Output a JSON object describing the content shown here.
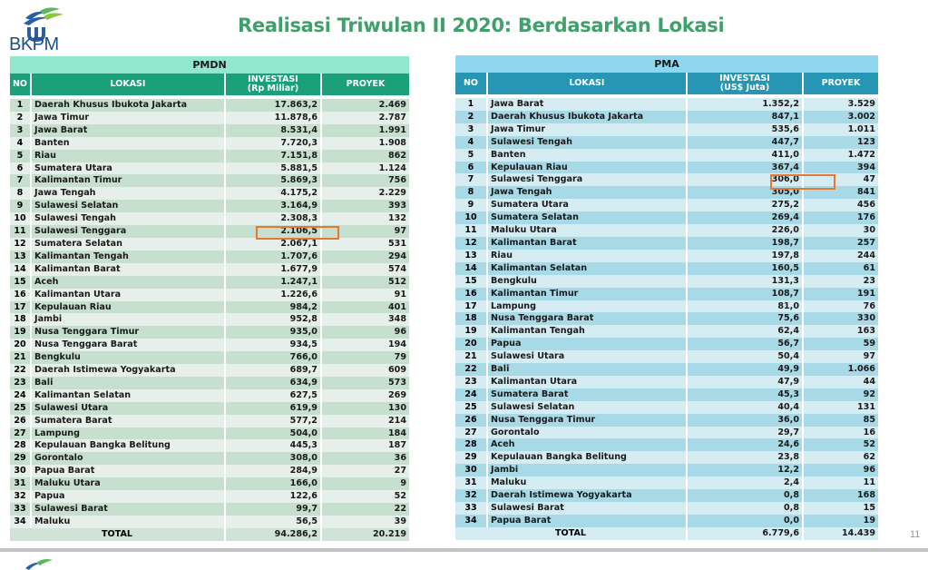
{
  "header": {
    "logo_text": "BKPM",
    "title": "Realisasi Triwulan II 2020: Berdasarkan Lokasi"
  },
  "pmdn": {
    "group_label": "PMDN",
    "columns": {
      "no": "NO",
      "lokasi": "LOKASI",
      "investasi": "INVESTASI",
      "investasi_unit": "(Rp Miliar)",
      "proyek": "PROYEK"
    },
    "rows": [
      {
        "no": "1",
        "lokasi": "Daerah Khusus Ibukota Jakarta",
        "investasi": "17.863,2",
        "proyek": "2.469"
      },
      {
        "no": "2",
        "lokasi": "Jawa Timur",
        "investasi": "11.878,6",
        "proyek": "2.787"
      },
      {
        "no": "3",
        "lokasi": "Jawa Barat",
        "investasi": "8.531,4",
        "proyek": "1.991"
      },
      {
        "no": "4",
        "lokasi": "Banten",
        "investasi": "7.720,3",
        "proyek": "1.908"
      },
      {
        "no": "5",
        "lokasi": "Riau",
        "investasi": "7.151,8",
        "proyek": "862"
      },
      {
        "no": "6",
        "lokasi": "Sumatera Utara",
        "investasi": "5.881,5",
        "proyek": "1.124"
      },
      {
        "no": "7",
        "lokasi": "Kalimantan Timur",
        "investasi": "5.869,3",
        "proyek": "756"
      },
      {
        "no": "8",
        "lokasi": "Jawa Tengah",
        "investasi": "4.175,2",
        "proyek": "2.229"
      },
      {
        "no": "9",
        "lokasi": "Sulawesi Selatan",
        "investasi": "3.164,9",
        "proyek": "393"
      },
      {
        "no": "10",
        "lokasi": "Sulawesi Tengah",
        "investasi": "2.308,3",
        "proyek": "132"
      },
      {
        "no": "11",
        "lokasi": "Sulawesi Tenggara",
        "investasi": "2.106,5",
        "proyek": "97"
      },
      {
        "no": "12",
        "lokasi": "Sumatera Selatan",
        "investasi": "2.067,1",
        "proyek": "531"
      },
      {
        "no": "13",
        "lokasi": "Kalimantan Tengah",
        "investasi": "1.707,6",
        "proyek": "294"
      },
      {
        "no": "14",
        "lokasi": "Kalimantan Barat",
        "investasi": "1.677,9",
        "proyek": "574"
      },
      {
        "no": "15",
        "lokasi": "Aceh",
        "investasi": "1.247,1",
        "proyek": "512"
      },
      {
        "no": "16",
        "lokasi": "Kalimantan Utara",
        "investasi": "1.226,6",
        "proyek": "91"
      },
      {
        "no": "17",
        "lokasi": "Kepulauan Riau",
        "investasi": "984,2",
        "proyek": "401"
      },
      {
        "no": "18",
        "lokasi": "Jambi",
        "investasi": "952,8",
        "proyek": "348"
      },
      {
        "no": "19",
        "lokasi": "Nusa Tenggara Timur",
        "investasi": "935,0",
        "proyek": "96"
      },
      {
        "no": "20",
        "lokasi": "Nusa Tenggara Barat",
        "investasi": "934,5",
        "proyek": "194"
      },
      {
        "no": "21",
        "lokasi": "Bengkulu",
        "investasi": "766,0",
        "proyek": "79"
      },
      {
        "no": "22",
        "lokasi": "Daerah Istimewa Yogyakarta",
        "investasi": "689,7",
        "proyek": "609"
      },
      {
        "no": "23",
        "lokasi": "Bali",
        "investasi": "634,9",
        "proyek": "573"
      },
      {
        "no": "24",
        "lokasi": "Kalimantan Selatan",
        "investasi": "627,5",
        "proyek": "269"
      },
      {
        "no": "25",
        "lokasi": "Sulawesi Utara",
        "investasi": "619,9",
        "proyek": "130"
      },
      {
        "no": "26",
        "lokasi": "Sumatera Barat",
        "investasi": "577,2",
        "proyek": "214"
      },
      {
        "no": "27",
        "lokasi": "Lampung",
        "investasi": "504,0",
        "proyek": "184"
      },
      {
        "no": "28",
        "lokasi": "Kepulauan Bangka Belitung",
        "investasi": "445,3",
        "proyek": "187"
      },
      {
        "no": "29",
        "lokasi": "Gorontalo",
        "investasi": "308,0",
        "proyek": "36"
      },
      {
        "no": "30",
        "lokasi": "Papua Barat",
        "investasi": "284,9",
        "proyek": "27"
      },
      {
        "no": "31",
        "lokasi": "Maluku Utara",
        "investasi": "166,0",
        "proyek": "9"
      },
      {
        "no": "32",
        "lokasi": "Papua",
        "investasi": "122,6",
        "proyek": "52"
      },
      {
        "no": "33",
        "lokasi": "Sulawesi Barat",
        "investasi": "99,7",
        "proyek": "22"
      },
      {
        "no": "34",
        "lokasi": "Maluku",
        "investasi": "56,5",
        "proyek": "39"
      }
    ],
    "total": {
      "label": "TOTAL",
      "investasi": "94.286,2",
      "proyek": "20.219"
    },
    "highlighted_row": 11
  },
  "pma": {
    "group_label": "PMA",
    "columns": {
      "no": "NO",
      "lokasi": "LOKASI",
      "investasi": "INVESTASI",
      "investasi_unit": "(US$ Juta)",
      "proyek": "PROYEK"
    },
    "rows": [
      {
        "no": "1",
        "lokasi": "Jawa Barat",
        "investasi": "1.352,2",
        "proyek": "3.529"
      },
      {
        "no": "2",
        "lokasi": "Daerah Khusus Ibukota Jakarta",
        "investasi": "847,1",
        "proyek": "3.002"
      },
      {
        "no": "3",
        "lokasi": "Jawa Timur",
        "investasi": "535,6",
        "proyek": "1.011"
      },
      {
        "no": "4",
        "lokasi": "Sulawesi Tengah",
        "investasi": "447,7",
        "proyek": "123"
      },
      {
        "no": "5",
        "lokasi": "Banten",
        "investasi": "411,0",
        "proyek": "1.472"
      },
      {
        "no": "6",
        "lokasi": "Kepulauan Riau",
        "investasi": "367,4",
        "proyek": "394"
      },
      {
        "no": "7",
        "lokasi": "Sulawesi Tenggara",
        "investasi": "306,0",
        "proyek": "47"
      },
      {
        "no": "8",
        "lokasi": "Jawa Tengah",
        "investasi": "305,0",
        "proyek": "841"
      },
      {
        "no": "9",
        "lokasi": "Sumatera Utara",
        "investasi": "275,2",
        "proyek": "456"
      },
      {
        "no": "10",
        "lokasi": "Sumatera Selatan",
        "investasi": "269,4",
        "proyek": "176"
      },
      {
        "no": "11",
        "lokasi": "Maluku Utara",
        "investasi": "226,0",
        "proyek": "30"
      },
      {
        "no": "12",
        "lokasi": "Kalimantan Barat",
        "investasi": "198,7",
        "proyek": "257"
      },
      {
        "no": "13",
        "lokasi": "Riau",
        "investasi": "197,8",
        "proyek": "244"
      },
      {
        "no": "14",
        "lokasi": "Kalimantan Selatan",
        "investasi": "160,5",
        "proyek": "61"
      },
      {
        "no": "15",
        "lokasi": "Bengkulu",
        "investasi": "131,3",
        "proyek": "23"
      },
      {
        "no": "16",
        "lokasi": "Kalimantan Timur",
        "investasi": "108,7",
        "proyek": "191"
      },
      {
        "no": "17",
        "lokasi": "Lampung",
        "investasi": "81,0",
        "proyek": "76"
      },
      {
        "no": "18",
        "lokasi": "Nusa Tenggara Barat",
        "investasi": "75,6",
        "proyek": "330"
      },
      {
        "no": "19",
        "lokasi": "Kalimantan Tengah",
        "investasi": "62,4",
        "proyek": "163"
      },
      {
        "no": "20",
        "lokasi": "Papua",
        "investasi": "56,7",
        "proyek": "59"
      },
      {
        "no": "21",
        "lokasi": "Sulawesi Utara",
        "investasi": "50,4",
        "proyek": "97"
      },
      {
        "no": "22",
        "lokasi": "Bali",
        "investasi": "49,9",
        "proyek": "1.066"
      },
      {
        "no": "23",
        "lokasi": "Kalimantan Utara",
        "investasi": "47,9",
        "proyek": "44"
      },
      {
        "no": "24",
        "lokasi": "Sumatera Barat",
        "investasi": "45,3",
        "proyek": "92"
      },
      {
        "no": "25",
        "lokasi": "Sulawesi Selatan",
        "investasi": "40,4",
        "proyek": "131"
      },
      {
        "no": "26",
        "lokasi": "Nusa Tenggara Timur",
        "investasi": "36,0",
        "proyek": "85"
      },
      {
        "no": "27",
        "lokasi": "Gorontalo",
        "investasi": "29,7",
        "proyek": "16"
      },
      {
        "no": "28",
        "lokasi": "Aceh",
        "investasi": "24,6",
        "proyek": "52"
      },
      {
        "no": "29",
        "lokasi": "Kepulauan Bangka Belitung",
        "investasi": "23,8",
        "proyek": "62"
      },
      {
        "no": "30",
        "lokasi": "Jambi",
        "investasi": "12,2",
        "proyek": "96"
      },
      {
        "no": "31",
        "lokasi": "Maluku",
        "investasi": "2,4",
        "proyek": "11"
      },
      {
        "no": "32",
        "lokasi": "Daerah Istimewa Yogyakarta",
        "investasi": "0,8",
        "proyek": "168"
      },
      {
        "no": "33",
        "lokasi": "Sulawesi Barat",
        "investasi": "0,8",
        "proyek": "15"
      },
      {
        "no": "34",
        "lokasi": "Papua Barat",
        "investasi": "0,0",
        "proyek": "19"
      }
    ],
    "total": {
      "label": "TOTAL",
      "investasi": "6.779,6",
      "proyek": "14.439"
    },
    "highlighted_row": 7
  },
  "footer": {
    "page_number": "11"
  },
  "colors": {
    "title": "#3fa06a",
    "pmdn_group_head": "#92e7cf",
    "pmdn_col_head": "#1aa07a",
    "pma_group_head": "#8fd6f0",
    "pma_col_head": "#2796b5",
    "highlight": "#e8782f"
  }
}
